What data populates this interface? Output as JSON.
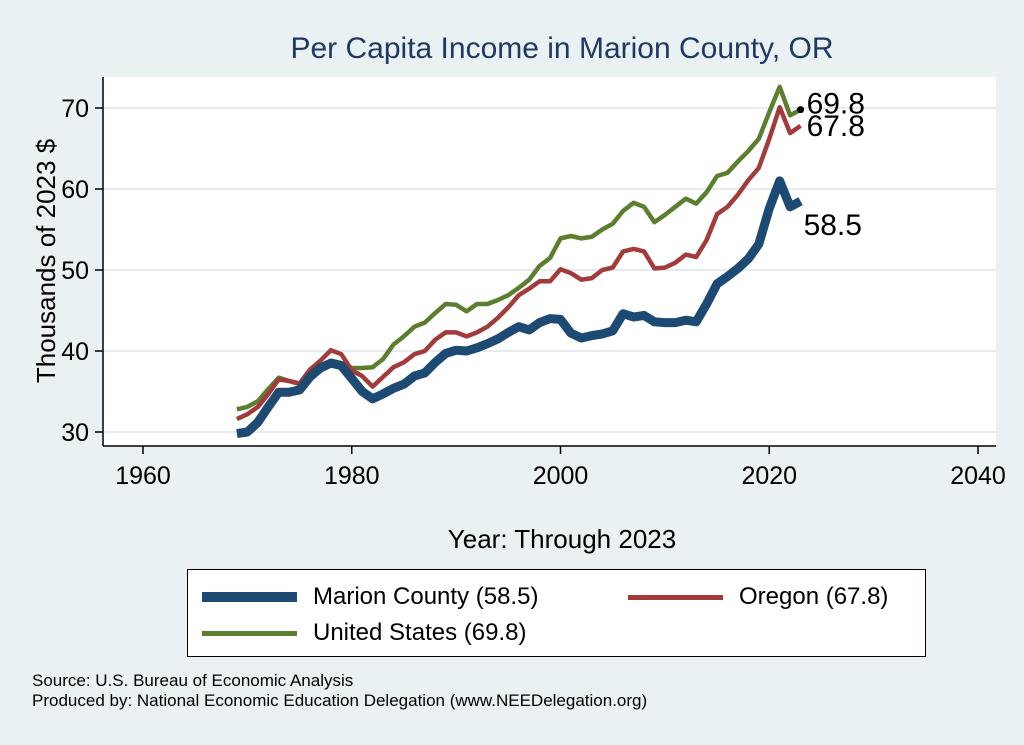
{
  "chart_data": {
    "type": "line",
    "title": "Per Capita Income in Marion County, OR",
    "xlabel": "Year: Through 2023",
    "ylabel": "Thousands of 2023 $",
    "xlim": [
      1960,
      2040
    ],
    "ylim": [
      30,
      73
    ],
    "xticks": [
      1960,
      1980,
      2000,
      2020,
      2040
    ],
    "yticks": [
      30,
      40,
      50,
      60,
      70
    ],
    "grid": true,
    "legend_position": "bottom",
    "x": [
      1969,
      1970,
      1971,
      1972,
      1973,
      1974,
      1975,
      1976,
      1977,
      1978,
      1979,
      1980,
      1981,
      1982,
      1983,
      1984,
      1985,
      1986,
      1987,
      1988,
      1989,
      1990,
      1991,
      1992,
      1993,
      1994,
      1995,
      1996,
      1997,
      1998,
      1999,
      2000,
      2001,
      2002,
      2003,
      2004,
      2005,
      2006,
      2007,
      2008,
      2009,
      2010,
      2011,
      2012,
      2013,
      2014,
      2015,
      2016,
      2017,
      2018,
      2019,
      2020,
      2021,
      2022,
      2023
    ],
    "series": [
      {
        "name": "United States (69.8)",
        "color": "#5b7f2e",
        "end_label": "69.8",
        "values": [
          32.8,
          33.1,
          33.8,
          35.3,
          36.7,
          36.3,
          35.9,
          36.9,
          37.7,
          38.8,
          38.5,
          37.9,
          37.9,
          38.0,
          39.0,
          40.8,
          41.8,
          43.0,
          43.5,
          44.7,
          45.8,
          45.7,
          44.9,
          45.8,
          45.8,
          46.3,
          46.9,
          47.8,
          48.8,
          50.5,
          51.5,
          53.9,
          54.2,
          53.9,
          54.1,
          55.0,
          55.7,
          57.3,
          58.3,
          57.8,
          55.9,
          56.8,
          57.8,
          58.8,
          58.2,
          59.6,
          61.6,
          62.0,
          63.4,
          64.7,
          66.2,
          69.5,
          72.6,
          69.1,
          69.8
        ]
      },
      {
        "name": "Oregon (67.8)",
        "color": "#a33b3b",
        "end_label": "67.8",
        "values": [
          31.6,
          32.2,
          33.1,
          34.7,
          36.5,
          36.3,
          36.0,
          37.7,
          38.8,
          40.1,
          39.6,
          37.6,
          36.9,
          35.6,
          36.8,
          38.0,
          38.6,
          39.6,
          40.0,
          41.4,
          42.3,
          42.3,
          41.8,
          42.3,
          43.0,
          44.1,
          45.4,
          46.9,
          47.7,
          48.6,
          48.6,
          50.1,
          49.6,
          48.8,
          49.0,
          50.0,
          50.3,
          52.3,
          52.6,
          52.3,
          50.2,
          50.3,
          50.9,
          51.9,
          51.6,
          53.7,
          56.9,
          57.8,
          59.3,
          61.1,
          62.6,
          66.2,
          70.1,
          66.9,
          67.8
        ]
      },
      {
        "name": "Marion County (58.5)",
        "color": "#1c4a72",
        "end_label": "58.5",
        "values": [
          29.8,
          30.0,
          31.2,
          33.1,
          34.9,
          34.9,
          35.2,
          36.8,
          37.9,
          38.5,
          38.2,
          36.6,
          35.0,
          34.1,
          34.7,
          35.4,
          35.9,
          36.9,
          37.3,
          38.6,
          39.7,
          40.1,
          40.0,
          40.4,
          40.9,
          41.5,
          42.3,
          43.0,
          42.6,
          43.5,
          44.0,
          43.9,
          42.2,
          41.6,
          41.9,
          42.1,
          42.5,
          44.6,
          44.2,
          44.4,
          43.6,
          43.5,
          43.5,
          43.8,
          43.6,
          45.8,
          48.3,
          49.2,
          50.2,
          51.4,
          53.2,
          57.6,
          61.0,
          57.8,
          58.5
        ]
      }
    ]
  },
  "legend": {
    "items": [
      {
        "label": "Marion County (58.5)",
        "color": "#1c4a72"
      },
      {
        "label": "Oregon (67.8)",
        "color": "#a33b3b"
      },
      {
        "label": "United States (69.8)",
        "color": "#5b7f2e"
      }
    ]
  },
  "footer": {
    "source": "Source: U.S. Bureau of Economic Analysis",
    "produced_by": "Produced by: National Economic Education Delegation (www.NEEDelegation.org)"
  }
}
